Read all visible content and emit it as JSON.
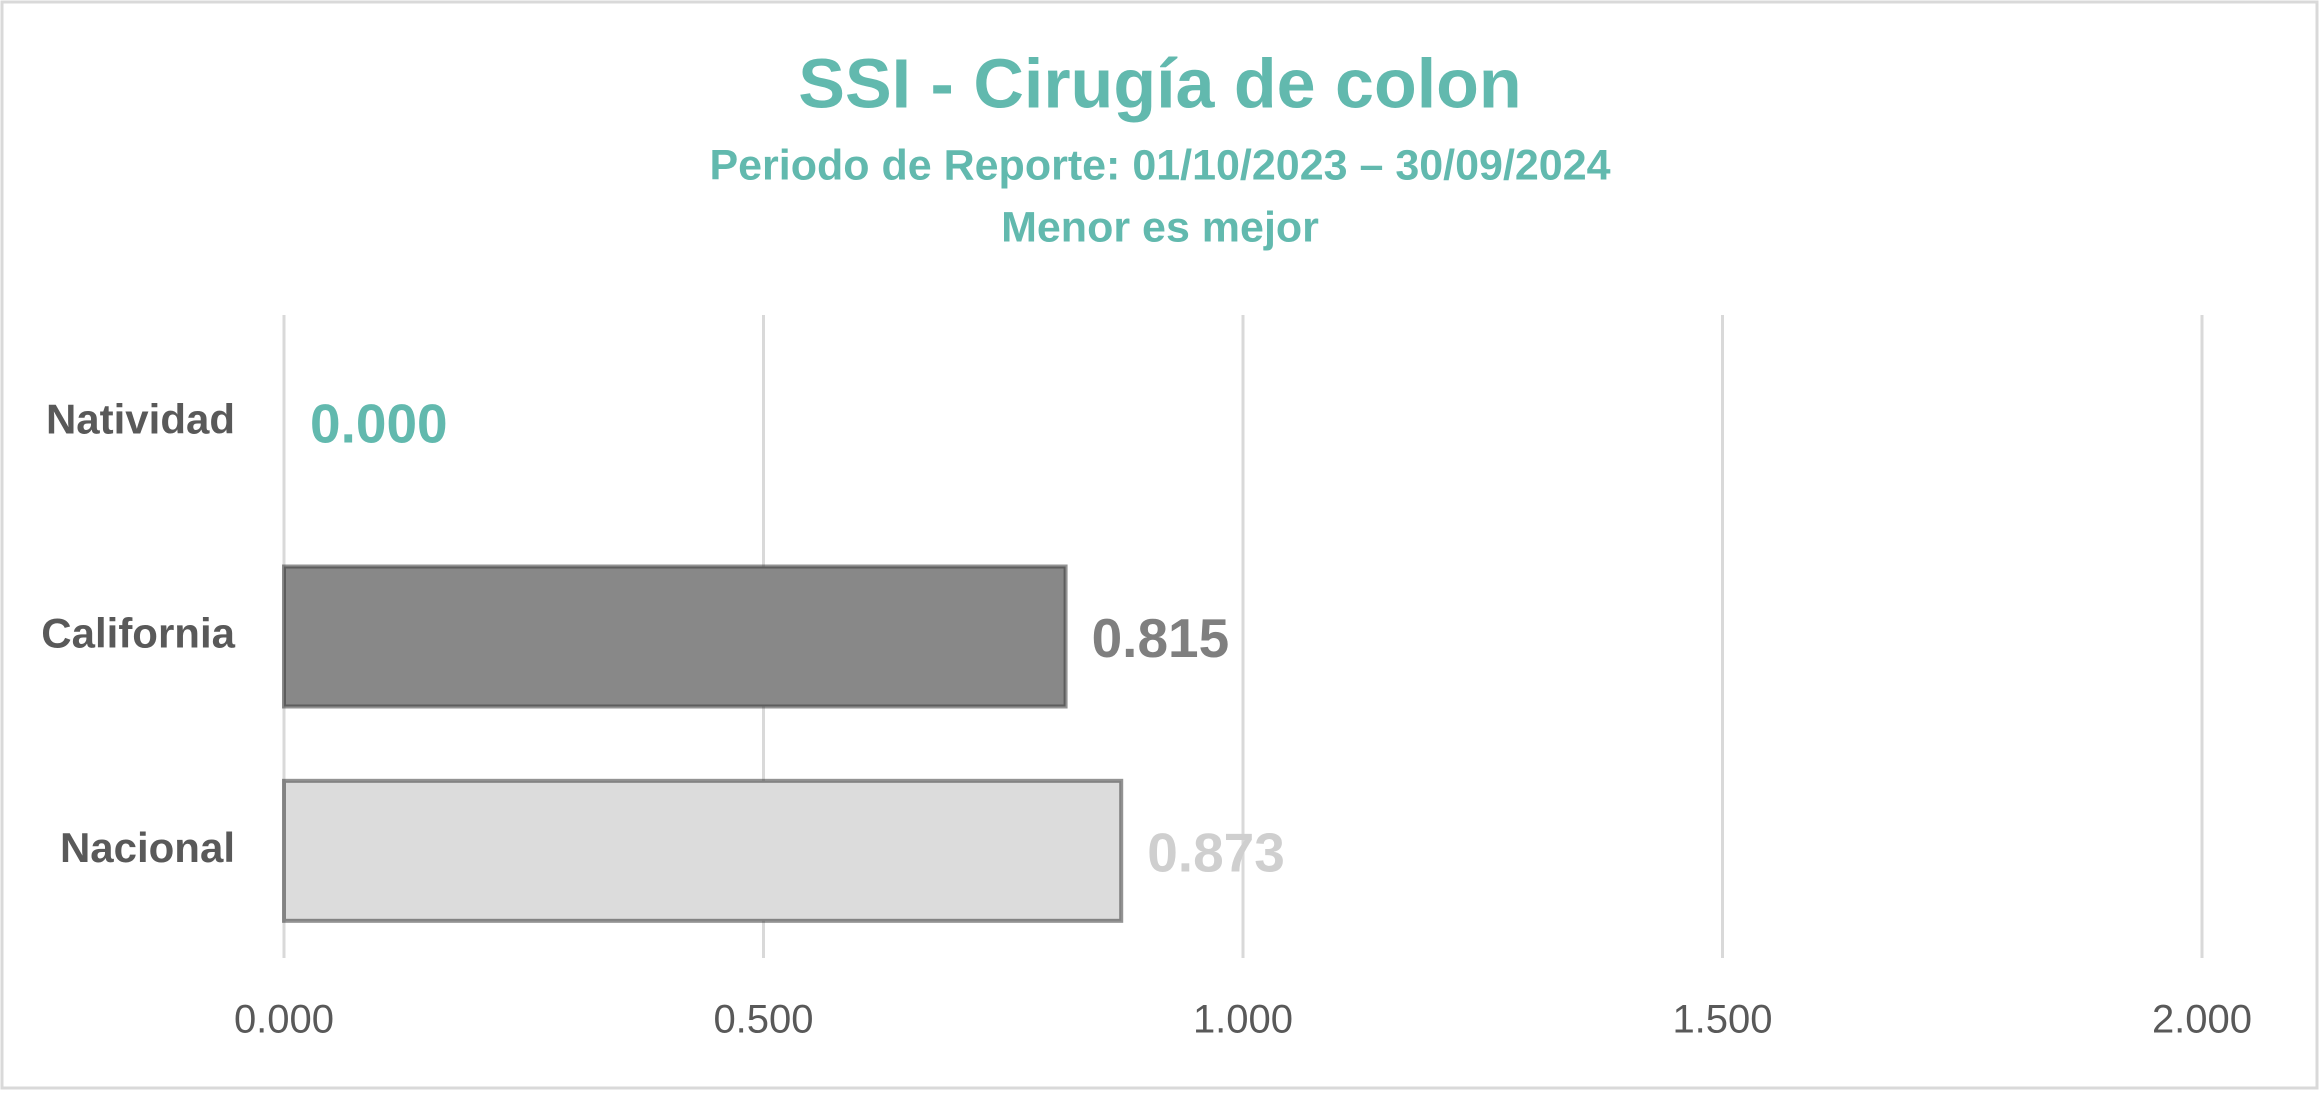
{
  "chart_data": {
    "type": "bar",
    "orientation": "horizontal",
    "title": "SSI - Cirugía de colon",
    "subtitle": "Periodo de Reporte: 01/10/2023 – 30/09/2024",
    "note": "Menor es mejor",
    "title_color": "#62b9ae",
    "categories": [
      "Natividad",
      "California",
      "Nacional"
    ],
    "values": [
      0,
      0.815,
      0.873
    ],
    "value_labels": [
      "0.000",
      "0.815",
      "0.873"
    ],
    "colors": [
      "#62b9ae",
      "#888888",
      "#dcdcdc"
    ],
    "value_label_colors": [
      "#62b9ae",
      "#7f7f7f",
      "#cfcfcf"
    ],
    "xlim": [
      0,
      2
    ],
    "xticks": [
      {
        "value": 0,
        "label": "0.000"
      },
      {
        "value": 0.5,
        "label": "0.500"
      },
      {
        "value": 1,
        "label": "1.000"
      },
      {
        "value": 1.5,
        "label": "1.500"
      },
      {
        "value": 2,
        "label": "2.000"
      }
    ],
    "grid": true
  }
}
